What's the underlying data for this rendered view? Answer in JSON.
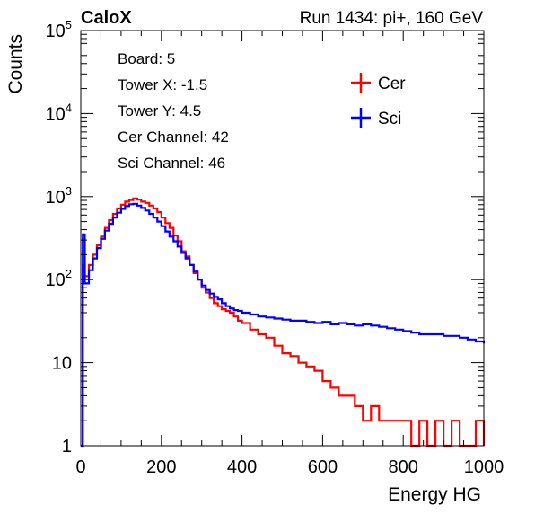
{
  "header": {
    "brand": "CaloX",
    "run_info": "Run 1434: pi+, 160 GeV"
  },
  "info_box": {
    "lines": [
      "Board: 5",
      "Tower X: -1.5",
      "Tower Y: 4.5",
      "Cer Channel: 42",
      "Sci Channel: 46"
    ]
  },
  "chart_data": {
    "type": "line",
    "title": "",
    "xlabel": "Energy HG",
    "ylabel": "Counts",
    "xlim": [
      0,
      1000
    ],
    "ylim": [
      1,
      100000
    ],
    "y_scale": "log",
    "grid": false,
    "legend_position": "top-right",
    "x_ticks": [
      "0",
      "200",
      "400",
      "600",
      "800",
      "1000"
    ],
    "y_ticks": [
      {
        "value": 1,
        "base": "1",
        "exp": ""
      },
      {
        "value": 10,
        "base": "10",
        "exp": ""
      },
      {
        "value": 100,
        "base": "10",
        "exp": "2"
      },
      {
        "value": 1000,
        "base": "10",
        "exp": "3"
      },
      {
        "value": 10000,
        "base": "10",
        "exp": "4"
      },
      {
        "value": 100000,
        "base": "10",
        "exp": "5"
      }
    ],
    "series": [
      {
        "name": "Cer",
        "color": "#ff0000",
        "x": [
          0,
          5,
          10,
          20,
          30,
          40,
          50,
          60,
          70,
          80,
          90,
          100,
          110,
          120,
          130,
          140,
          150,
          160,
          170,
          180,
          190,
          200,
          210,
          220,
          230,
          240,
          250,
          260,
          270,
          280,
          290,
          300,
          310,
          320,
          330,
          340,
          350,
          360,
          370,
          380,
          390,
          400,
          420,
          440,
          460,
          480,
          500,
          520,
          540,
          560,
          580,
          600,
          620,
          640,
          660,
          680,
          700,
          720,
          740,
          760,
          780,
          800,
          820,
          840,
          860,
          880,
          900,
          920,
          940,
          960,
          980,
          1000
        ],
        "y": [
          1,
          150,
          110,
          150,
          200,
          260,
          330,
          420,
          520,
          620,
          720,
          800,
          870,
          910,
          950,
          920,
          870,
          840,
          780,
          720,
          650,
          560,
          480,
          420,
          340,
          290,
          220,
          190,
          150,
          120,
          100,
          80,
          70,
          60,
          52,
          48,
          44,
          42,
          40,
          36,
          32,
          30,
          25,
          22,
          20,
          16,
          13,
          12,
          10,
          9,
          8,
          6,
          5,
          4,
          4,
          3,
          2,
          3,
          2,
          2,
          2,
          2,
          1,
          2,
          1,
          2,
          1,
          2,
          1,
          1,
          2,
          1
        ]
      },
      {
        "name": "Sci",
        "color": "#0000ff",
        "x": [
          0,
          5,
          10,
          20,
          30,
          40,
          50,
          60,
          70,
          80,
          90,
          100,
          110,
          120,
          130,
          140,
          150,
          160,
          170,
          180,
          190,
          200,
          210,
          220,
          230,
          240,
          250,
          260,
          270,
          280,
          290,
          300,
          310,
          320,
          330,
          340,
          350,
          360,
          370,
          380,
          390,
          400,
          420,
          440,
          460,
          480,
          500,
          520,
          540,
          560,
          580,
          600,
          620,
          640,
          660,
          680,
          700,
          720,
          740,
          760,
          780,
          800,
          820,
          840,
          860,
          880,
          900,
          920,
          940,
          960,
          980,
          1000
        ],
        "y": [
          1,
          350,
          90,
          130,
          180,
          240,
          310,
          390,
          470,
          560,
          640,
          710,
          770,
          810,
          820,
          780,
          730,
          680,
          620,
          560,
          500,
          440,
          380,
          330,
          290,
          250,
          210,
          180,
          150,
          125,
          100,
          85,
          75,
          68,
          62,
          58,
          52,
          48,
          45,
          43,
          42,
          40,
          38,
          36,
          35,
          34,
          33,
          32,
          32,
          31,
          30,
          31,
          29,
          30,
          29,
          28,
          29,
          28,
          27,
          26,
          25,
          24,
          23,
          22,
          22,
          22,
          21,
          21,
          20,
          19,
          18,
          17
        ]
      }
    ]
  }
}
